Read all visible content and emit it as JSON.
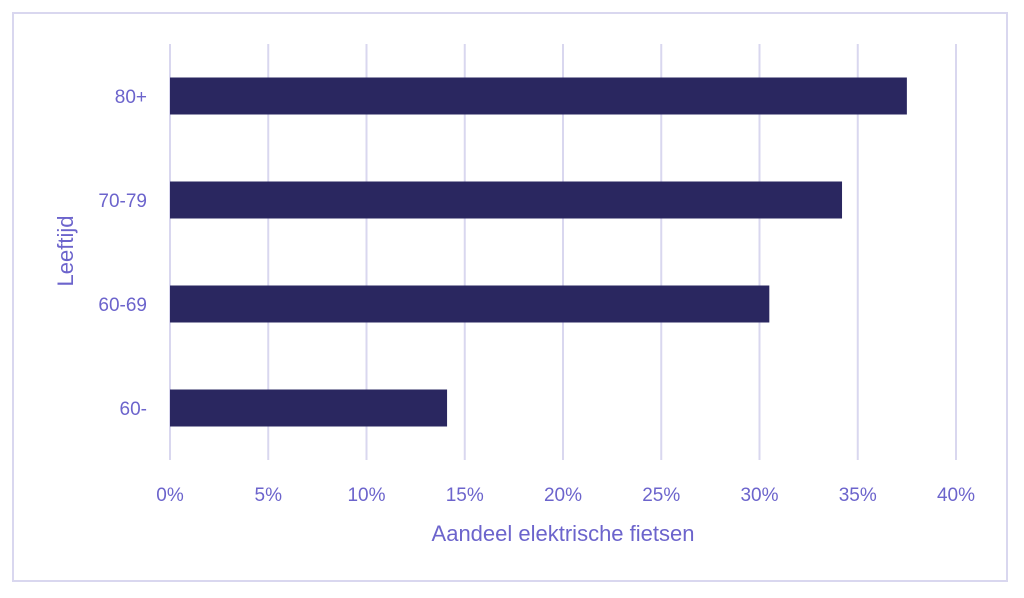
{
  "chart_data": {
    "type": "bar",
    "orientation": "horizontal",
    "categories": [
      "60-",
      "60-69",
      "70-79",
      "80+"
    ],
    "values": [
      14.1,
      30.5,
      34.2,
      37.5
    ],
    "value_unit": "%",
    "xlabel": "Aandeel elektrische fietsen",
    "ylabel": "Leeftijd",
    "xlim": [
      0,
      40
    ],
    "xticks": [
      "0%",
      "5%",
      "10%",
      "15%",
      "20%",
      "25%",
      "30%",
      "35%",
      "40%"
    ],
    "grid": "vertical",
    "legend": "none",
    "colors": {
      "bar": "#2a2760",
      "text": "#6c64cc",
      "grid": "#d9d7ef",
      "frame": "#d9d7ef"
    }
  }
}
